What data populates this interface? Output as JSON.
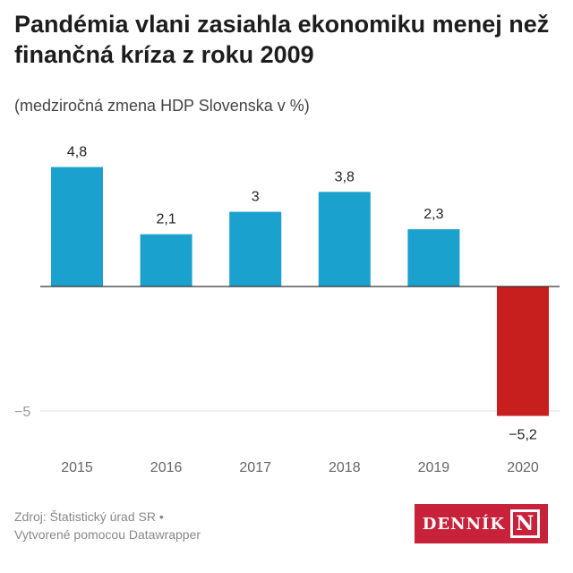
{
  "title": "Pandémia vlani zasiahla ekonomiku menej než finančná kríza z roku 2009",
  "subtitle": "(medziročná zmena HDP Slovenska v %)",
  "footer": {
    "source": "Zdroj: Štatistický úrad SR •",
    "credit": "Vytvorené pomocou Datawrapper"
  },
  "logo": {
    "text": "DENNÍK",
    "mark": "N"
  },
  "chart_data": {
    "type": "bar",
    "categories": [
      "2015",
      "2016",
      "2017",
      "2018",
      "2019",
      "2020"
    ],
    "values": [
      4.8,
      2.1,
      3,
      3.8,
      2.3,
      -5.2
    ],
    "value_labels": [
      "4,8",
      "2,1",
      "3",
      "3,8",
      "2,3",
      "−5,2"
    ],
    "yticks": [
      {
        "value": -5,
        "label": "−5"
      }
    ],
    "ylim": [
      -5.2,
      4.8
    ],
    "colors": {
      "positive": "#1aa1ce",
      "negative": "#c71e1e"
    },
    "title": "Pandémia vlani zasiahla ekonomiku menej než finančná kríza z roku 2009",
    "ylabel": "medziročná zmena HDP Slovenska v %"
  }
}
